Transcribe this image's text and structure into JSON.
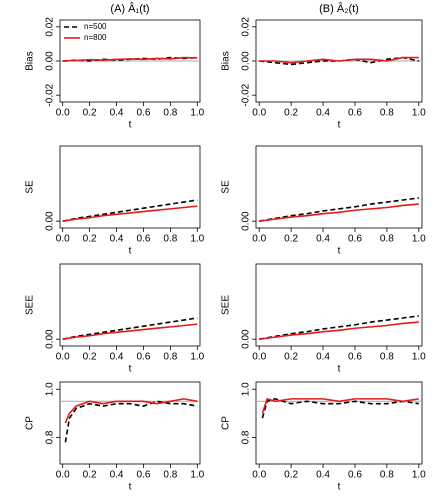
{
  "chart_data": [
    {
      "type": "line",
      "title": "(A) Â₁(t)",
      "xlabel": "t",
      "ylabel": "Bias",
      "legend": "top-left",
      "x": [
        0,
        0.1,
        0.2,
        0.3,
        0.4,
        0.5,
        0.6,
        0.7,
        0.8,
        0.9,
        1.0
      ],
      "series": [
        {
          "name": "n=500",
          "color": "#000000",
          "line_style": "dashed",
          "values": [
            0,
            0.0005,
            0,
            0.001,
            0.0005,
            0.001,
            0.0015,
            0.001,
            0.002,
            0.0015,
            0.002
          ]
        },
        {
          "name": "n=800",
          "color": "#e41a1c",
          "line_style": "solid",
          "values": [
            0,
            0.0003,
            0.0008,
            0.0005,
            0.001,
            0.0012,
            0.001,
            0.0015,
            0.0012,
            0.002,
            0.0018
          ]
        }
      ],
      "reference_line": 0,
      "xlim": [
        -0.02,
        1.02
      ],
      "ylim": [
        -0.024,
        0.024
      ],
      "xticks": [
        {
          "value": 0,
          "label": "0.0"
        },
        0.2,
        0.4,
        0.6,
        0.8,
        {
          "value": 1,
          "label": "1.0"
        }
      ],
      "yticks": [
        {
          "value": -0.02,
          "label": "-0.02"
        },
        {
          "value": 0,
          "label": "0.00"
        },
        0.02
      ]
    },
    {
      "type": "line",
      "title": "(B) Â₂(t)",
      "xlabel": "t",
      "ylabel": "Bias",
      "x": [
        0,
        0.1,
        0.2,
        0.3,
        0.4,
        0.5,
        0.6,
        0.7,
        0.8,
        0.9,
        1.0
      ],
      "series": [
        {
          "color": "#000000",
          "line_style": "dashed",
          "values": [
            0,
            -0.001,
            -0.002,
            -0.001,
            0,
            0,
            0.001,
            -0.001,
            0.001,
            0.002,
            0
          ]
        },
        {
          "color": "#e41a1c",
          "line_style": "solid",
          "values": [
            0,
            0,
            -0.001,
            0,
            0.001,
            0,
            0.001,
            0.001,
            0,
            0.002,
            0.002
          ]
        }
      ],
      "reference_line": 0,
      "xlim": [
        -0.02,
        1.02
      ],
      "ylim": [
        -0.024,
        0.024
      ],
      "xticks": [
        {
          "value": 0,
          "label": "0.0"
        },
        0.2,
        0.4,
        0.6,
        0.8,
        {
          "value": 1,
          "label": "1.0"
        }
      ],
      "yticks": [
        {
          "value": -0.02,
          "label": "-0.02"
        },
        {
          "value": 0,
          "label": "0.00"
        },
        0.02
      ]
    },
    {
      "type": "line",
      "xlabel": "t",
      "ylabel": "SE",
      "x": [
        0,
        0.1,
        0.2,
        0.3,
        0.4,
        0.5,
        0.6,
        0.7,
        0.8,
        0.9,
        1.0
      ],
      "series": [
        {
          "color": "#000000",
          "line_style": "dashed",
          "values": [
            0,
            0.004,
            0.007,
            0.01,
            0.013,
            0.016,
            0.019,
            0.022,
            0.025,
            0.028,
            0.031
          ]
        },
        {
          "color": "#e41a1c",
          "line_style": "solid",
          "values": [
            0,
            0.003,
            0.005,
            0.008,
            0.01,
            0.012,
            0.014,
            0.016,
            0.018,
            0.02,
            0.022
          ]
        }
      ],
      "xlim": [
        -0.02,
        1.02
      ],
      "ylim": [
        -0.01,
        0.11
      ],
      "xticks": [
        {
          "value": 0,
          "label": "0.0"
        },
        0.2,
        0.4,
        0.6,
        0.8,
        {
          "value": 1,
          "label": "1.0"
        }
      ],
      "yticks": [
        {
          "value": 0,
          "label": "0.00"
        }
      ]
    },
    {
      "type": "line",
      "xlabel": "t",
      "ylabel": "SE",
      "x": [
        0,
        0.1,
        0.2,
        0.3,
        0.4,
        0.5,
        0.6,
        0.7,
        0.8,
        0.9,
        1.0
      ],
      "series": [
        {
          "color": "#000000",
          "line_style": "dashed",
          "values": [
            0,
            0.004,
            0.008,
            0.011,
            0.015,
            0.018,
            0.021,
            0.025,
            0.028,
            0.031,
            0.034
          ]
        },
        {
          "color": "#e41a1c",
          "line_style": "solid",
          "values": [
            0,
            0.003,
            0.006,
            0.008,
            0.011,
            0.013,
            0.016,
            0.018,
            0.02,
            0.023,
            0.025
          ]
        }
      ],
      "xlim": [
        -0.02,
        1.02
      ],
      "ylim": [
        -0.01,
        0.11
      ],
      "xticks": [
        {
          "value": 0,
          "label": "0.0"
        },
        0.2,
        0.4,
        0.6,
        0.8,
        {
          "value": 1,
          "label": "1.0"
        }
      ],
      "yticks": [
        {
          "value": 0,
          "label": "0.00"
        }
      ]
    },
    {
      "type": "line",
      "xlabel": "t",
      "ylabel": "SEE",
      "x": [
        0,
        0.1,
        0.2,
        0.3,
        0.4,
        0.5,
        0.6,
        0.7,
        0.8,
        0.9,
        1.0
      ],
      "series": [
        {
          "color": "#000000",
          "line_style": "dashed",
          "values": [
            0,
            0.004,
            0.007,
            0.01,
            0.013,
            0.016,
            0.019,
            0.022,
            0.025,
            0.028,
            0.031
          ]
        },
        {
          "color": "#e41a1c",
          "line_style": "solid",
          "values": [
            0,
            0.003,
            0.005,
            0.008,
            0.01,
            0.012,
            0.014,
            0.016,
            0.018,
            0.02,
            0.022
          ]
        }
      ],
      "xlim": [
        -0.02,
        1.02
      ],
      "ylim": [
        -0.01,
        0.11
      ],
      "xticks": [
        {
          "value": 0,
          "label": "0.0"
        },
        0.2,
        0.4,
        0.6,
        0.8,
        {
          "value": 1,
          "label": "1.0"
        }
      ],
      "yticks": [
        {
          "value": 0,
          "label": "0.00"
        }
      ]
    },
    {
      "type": "line",
      "xlabel": "t",
      "ylabel": "SEE",
      "x": [
        0,
        0.1,
        0.2,
        0.3,
        0.4,
        0.5,
        0.6,
        0.7,
        0.8,
        0.9,
        1.0
      ],
      "series": [
        {
          "color": "#000000",
          "line_style": "dashed",
          "values": [
            0,
            0.004,
            0.008,
            0.011,
            0.015,
            0.018,
            0.021,
            0.025,
            0.028,
            0.031,
            0.034
          ]
        },
        {
          "color": "#e41a1c",
          "line_style": "solid",
          "values": [
            0,
            0.003,
            0.006,
            0.008,
            0.011,
            0.013,
            0.016,
            0.018,
            0.02,
            0.023,
            0.025
          ]
        }
      ],
      "xlim": [
        -0.02,
        1.02
      ],
      "ylim": [
        -0.01,
        0.11
      ],
      "xticks": [
        {
          "value": 0,
          "label": "0.0"
        },
        0.2,
        0.4,
        0.6,
        0.8,
        {
          "value": 1,
          "label": "1.0"
        }
      ],
      "yticks": [
        {
          "value": 0,
          "label": "0.00"
        }
      ]
    },
    {
      "type": "line",
      "xlabel": "t",
      "ylabel": "CP",
      "x": [
        0.02,
        0.05,
        0.1,
        0.2,
        0.3,
        0.4,
        0.5,
        0.6,
        0.7,
        0.8,
        0.9,
        1.0
      ],
      "series": [
        {
          "color": "#000000",
          "line_style": "dashed",
          "values": [
            0.78,
            0.88,
            0.92,
            0.94,
            0.93,
            0.94,
            0.94,
            0.93,
            0.95,
            0.94,
            0.94,
            0.93
          ]
        },
        {
          "color": "#e41a1c",
          "line_style": "solid",
          "values": [
            0.86,
            0.9,
            0.93,
            0.95,
            0.94,
            0.95,
            0.95,
            0.95,
            0.94,
            0.95,
            0.96,
            0.95
          ]
        }
      ],
      "reference_line": 0.95,
      "xlim": [
        -0.02,
        1.02
      ],
      "ylim": [
        0.69,
        1.03
      ],
      "xticks": [
        {
          "value": 0,
          "label": "0.0"
        },
        0.2,
        0.4,
        0.6,
        0.8,
        {
          "value": 1,
          "label": "1.0"
        }
      ],
      "yticks": [
        0.8,
        {
          "value": 1,
          "label": "1.0"
        }
      ]
    },
    {
      "type": "line",
      "xlabel": "t",
      "ylabel": "CP",
      "x": [
        0.02,
        0.05,
        0.1,
        0.2,
        0.3,
        0.4,
        0.5,
        0.6,
        0.7,
        0.8,
        0.9,
        1.0
      ],
      "series": [
        {
          "color": "#000000",
          "line_style": "dashed",
          "values": [
            0.88,
            0.95,
            0.96,
            0.94,
            0.95,
            0.94,
            0.94,
            0.95,
            0.94,
            0.94,
            0.95,
            0.94
          ]
        },
        {
          "color": "#e41a1c",
          "line_style": "solid",
          "values": [
            0.9,
            0.96,
            0.95,
            0.96,
            0.96,
            0.96,
            0.95,
            0.96,
            0.96,
            0.96,
            0.95,
            0.96
          ]
        }
      ],
      "reference_line": 0.95,
      "xlim": [
        -0.02,
        1.02
      ],
      "ylim": [
        0.69,
        1.03
      ],
      "xticks": [
        {
          "value": 0,
          "label": "0.0"
        },
        0.2,
        0.4,
        0.6,
        0.8,
        {
          "value": 1,
          "label": "1.0"
        }
      ],
      "yticks": [
        0.8,
        {
          "value": 1,
          "label": "1.0"
        }
      ]
    }
  ]
}
